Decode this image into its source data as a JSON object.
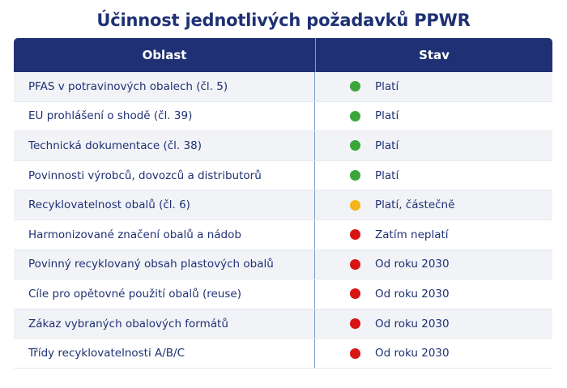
{
  "title": "Účinnost jednotlivých požadavků PPWR",
  "header": {
    "col1": "Oblast",
    "col2": "Stav"
  },
  "colors": {
    "green": "#3aa63a",
    "amber": "#f5b41a",
    "red": "#d81414",
    "navy": "#1f3174"
  },
  "rows": [
    {
      "area": "PFAS v potravinových obalech (čl. 5)",
      "status": "Platí",
      "status_color": "green"
    },
    {
      "area": "EU prohlášení o shodě (čl. 39)",
      "status": "Platí",
      "status_color": "green"
    },
    {
      "area": "Technická dokumentace (čl. 38)",
      "status": "Platí",
      "status_color": "green"
    },
    {
      "area": "Povinnosti výrobců, dovozců a distributorů",
      "status": "Platí",
      "status_color": "green"
    },
    {
      "area": "Recyklovatelnost obalů (čl. 6)",
      "status": "Platí, částečně",
      "status_color": "amber"
    },
    {
      "area": "Harmonizované značení obalů a nádob",
      "status": "Zatím neplatí",
      "status_color": "red"
    },
    {
      "area": "Povinný recyklovaný obsah plastových obalů",
      "status": "Od roku 2030",
      "status_color": "red"
    },
    {
      "area": "Cíle pro opětovné použití obalů (reuse)",
      "status": "Od roku 2030",
      "status_color": "red"
    },
    {
      "area": "Zákaz vybraných obalových formátů",
      "status": "Od roku 2030",
      "status_color": "red"
    },
    {
      "area": "Třídy recyklovatelnosti A/B/C",
      "status": "Od roku 2030",
      "status_color": "red"
    }
  ]
}
